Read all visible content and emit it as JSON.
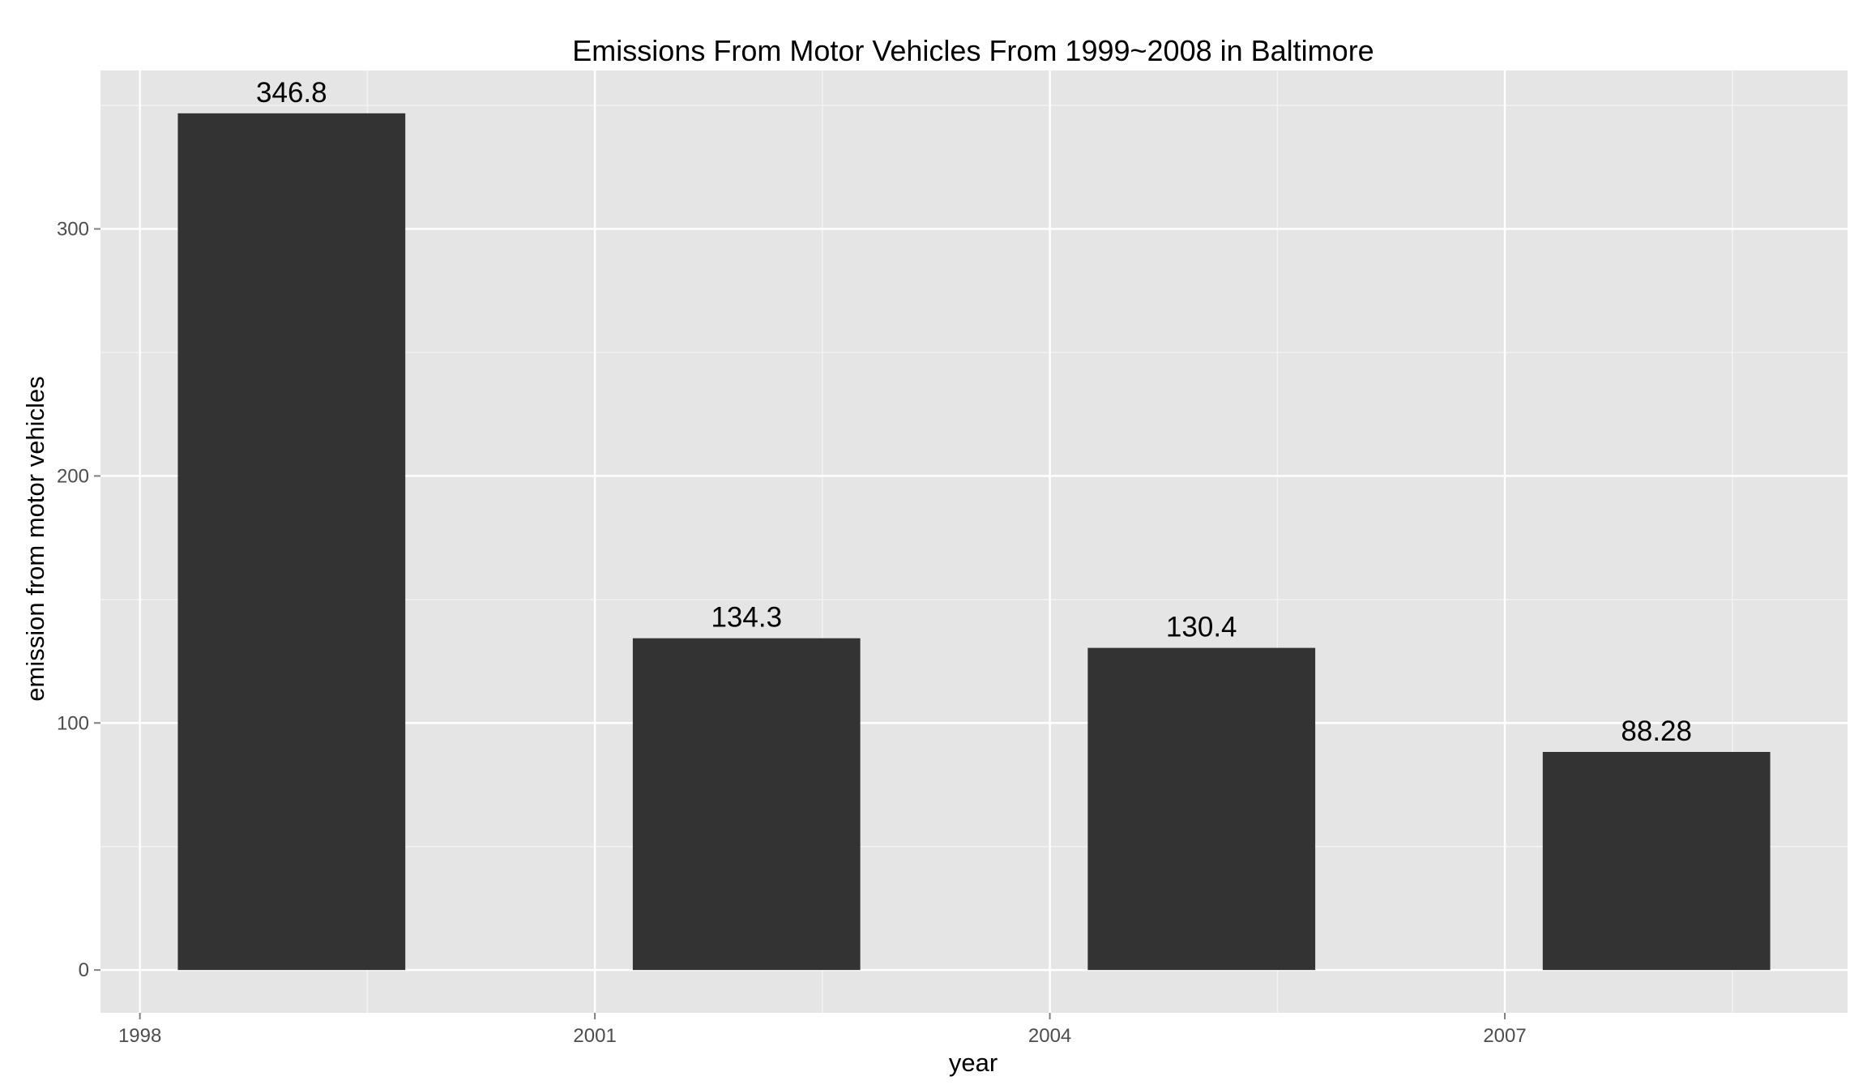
{
  "chart_data": {
    "type": "bar",
    "title": "Emissions From Motor Vehicles From 1999~2008 in Baltimore",
    "xlabel": "year",
    "ylabel": "emission from motor vehicles",
    "x": [
      1999,
      2002,
      2005,
      2008
    ],
    "values": [
      346.8,
      134.3,
      130.4,
      88.28
    ],
    "data_labels": [
      "346.8",
      "134.3",
      "130.4",
      "88.28"
    ],
    "bar_width_years": 1.5,
    "xlim": [
      1997.74,
      2009.26
    ],
    "ylim": [
      -17.34,
      364.14
    ],
    "x_ticks": [
      1998,
      2001,
      2004,
      2007
    ],
    "x_tick_labels": [
      "1998",
      "2001",
      "2004",
      "2007"
    ],
    "y_ticks": [
      0,
      100,
      200,
      300
    ],
    "y_tick_labels": [
      "0",
      "100",
      "200",
      "300"
    ],
    "grid": true,
    "legend": "none",
    "colors": {
      "panel_background": "#e5e5e5",
      "grid_major": "#ffffff",
      "grid_minor": "#f2f2f2",
      "bar_fill": "#333333",
      "tick_mark": "#7f7f7f"
    }
  }
}
